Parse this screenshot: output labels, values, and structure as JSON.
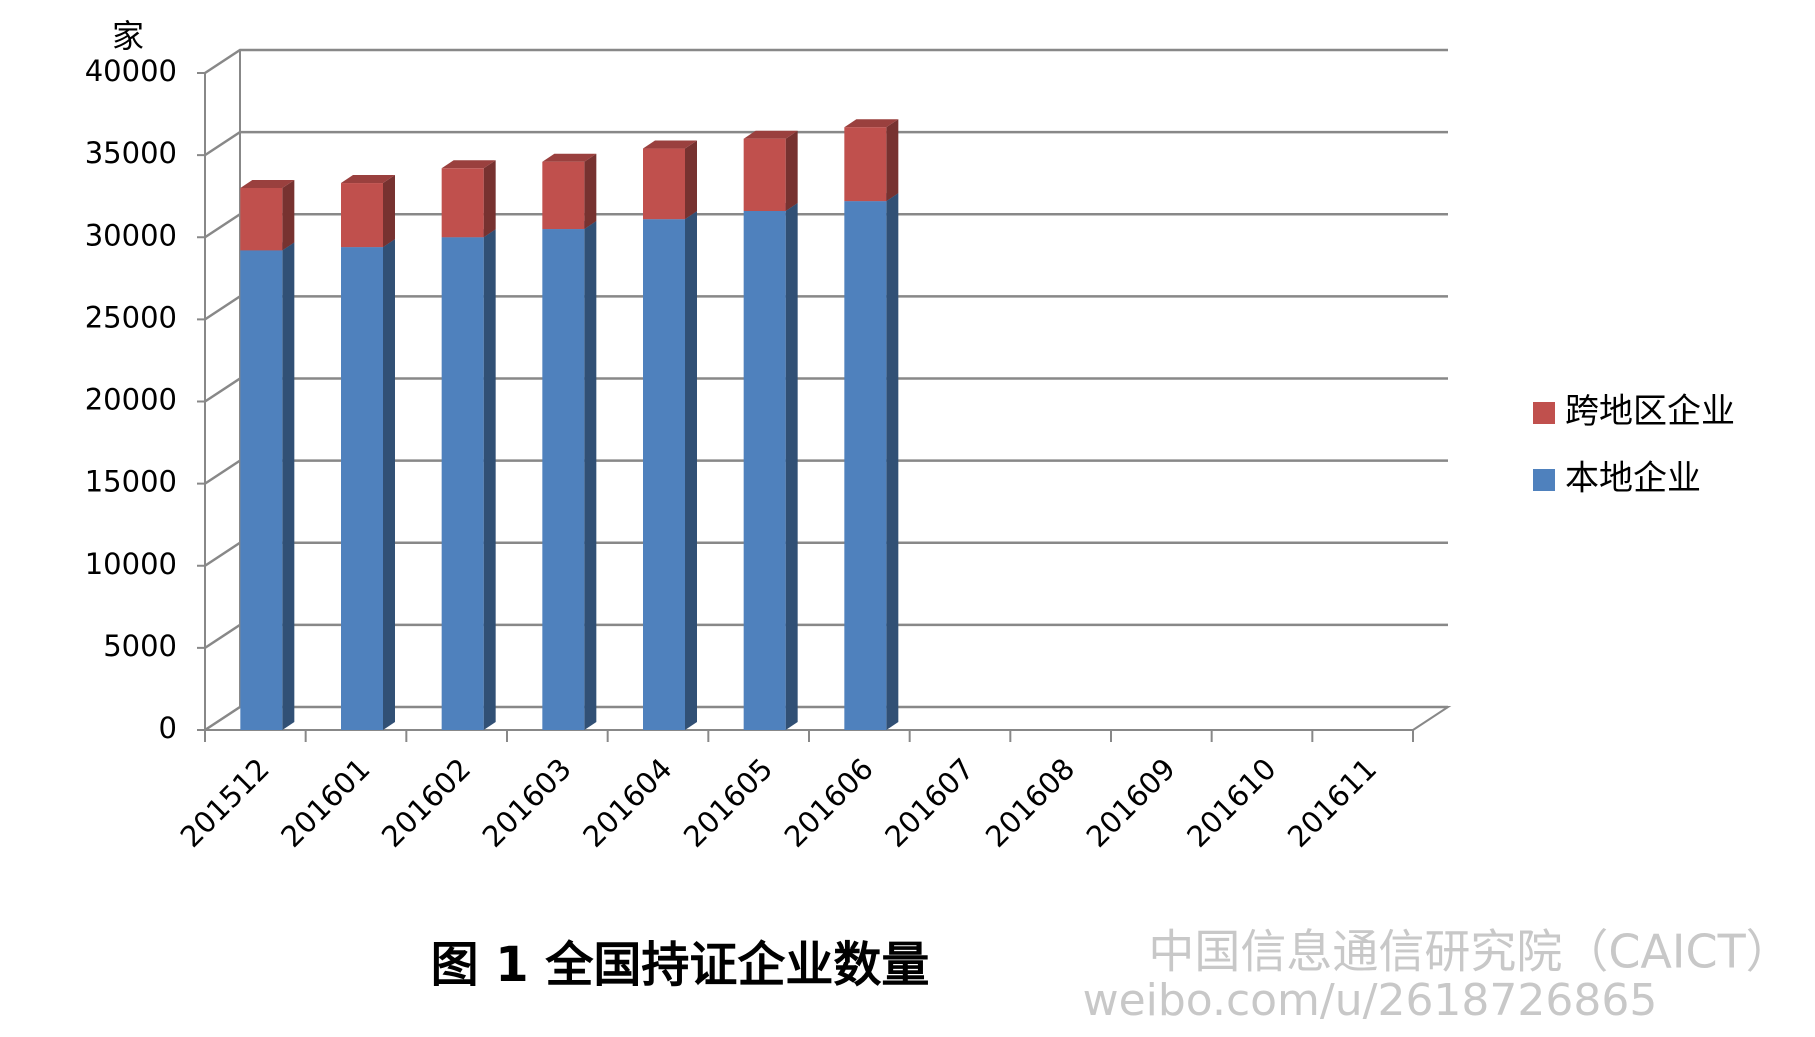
{
  "chart_data": {
    "type": "bar3d_stacked",
    "title": "图 1  全国持证企业数量",
    "y_unit": "家",
    "categories": [
      "201512",
      "201601",
      "201602",
      "201603",
      "201604",
      "201605",
      "201606",
      "201607",
      "201608",
      "201609",
      "201610",
      "201611"
    ],
    "series": [
      {
        "name": "本地企业",
        "color": "#4f81bd",
        "values": [
          29200,
          29400,
          30000,
          30500,
          31100,
          31600,
          32200,
          null,
          null,
          null,
          null,
          null
        ]
      },
      {
        "name": "跨地区企业",
        "color": "#c0504d",
        "values": [
          3800,
          3900,
          4200,
          4100,
          4300,
          4400,
          4500,
          null,
          null,
          null,
          null,
          null
        ]
      }
    ],
    "ylim": [
      0,
      40000
    ],
    "yticks": [
      0,
      5000,
      10000,
      15000,
      20000,
      25000,
      30000,
      35000,
      40000
    ],
    "grid": true,
    "legend": "right",
    "watermark": [
      "中国信息通信研究院（CAICT）",
      "weibo.com/u/2618726865"
    ]
  }
}
